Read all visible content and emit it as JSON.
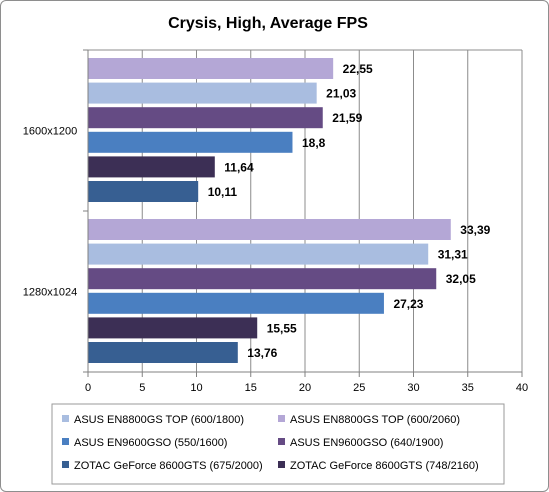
{
  "chart_data": {
    "type": "bar",
    "orientation": "horizontal",
    "title": "Crysis, High, Average FPS",
    "xlim": [
      0,
      40
    ],
    "x_ticks": [
      0,
      5,
      10,
      15,
      20,
      25,
      30,
      35,
      40
    ],
    "grid": true,
    "legend_position": "bottom",
    "categories": [
      "1600x1200",
      "1280x1024"
    ],
    "series": [
      {
        "name": "ASUS EN8800GS TOP (600/2060)",
        "color": "#b4a7d6",
        "values": [
          22.55,
          33.39
        ],
        "labels": [
          "22,55",
          "33,39"
        ]
      },
      {
        "name": "ASUS EN8800GS TOP (600/1800)",
        "color": "#a9bde0",
        "values": [
          21.03,
          31.31
        ],
        "labels": [
          "21,03",
          "31,31"
        ]
      },
      {
        "name": "ASUS EN9600GSO (640/1900)",
        "color": "#654b84",
        "values": [
          21.59,
          32.05
        ],
        "labels": [
          "21,59",
          "32,05"
        ]
      },
      {
        "name": "ASUS EN9600GSO (550/1600)",
        "color": "#4a7fc1",
        "values": [
          18.8,
          27.23
        ],
        "labels": [
          "18,8",
          "27,23"
        ]
      },
      {
        "name": "ZOTAC GeForce 8600GTS (748/2160)",
        "color": "#3c2f55",
        "values": [
          11.64,
          15.55
        ],
        "labels": [
          "11,64",
          "15,55"
        ]
      },
      {
        "name": "ZOTAC GeForce 8600GTS (675/2000)",
        "color": "#375f92",
        "values": [
          10.11,
          13.76
        ],
        "labels": [
          "10,11",
          "13,76"
        ]
      }
    ],
    "legend_layout": [
      [
        "ASUS EN8800GS TOP (600/1800)",
        "ASUS EN8800GS TOP (600/2060)"
      ],
      [
        "ASUS EN9600GSO (550/1600)",
        "ASUS EN9600GSO (640/1900)"
      ],
      [
        "ZOTAC GeForce 8600GTS (675/2000)",
        "ZOTAC GeForce 8600GTS (748/2160)"
      ]
    ]
  }
}
